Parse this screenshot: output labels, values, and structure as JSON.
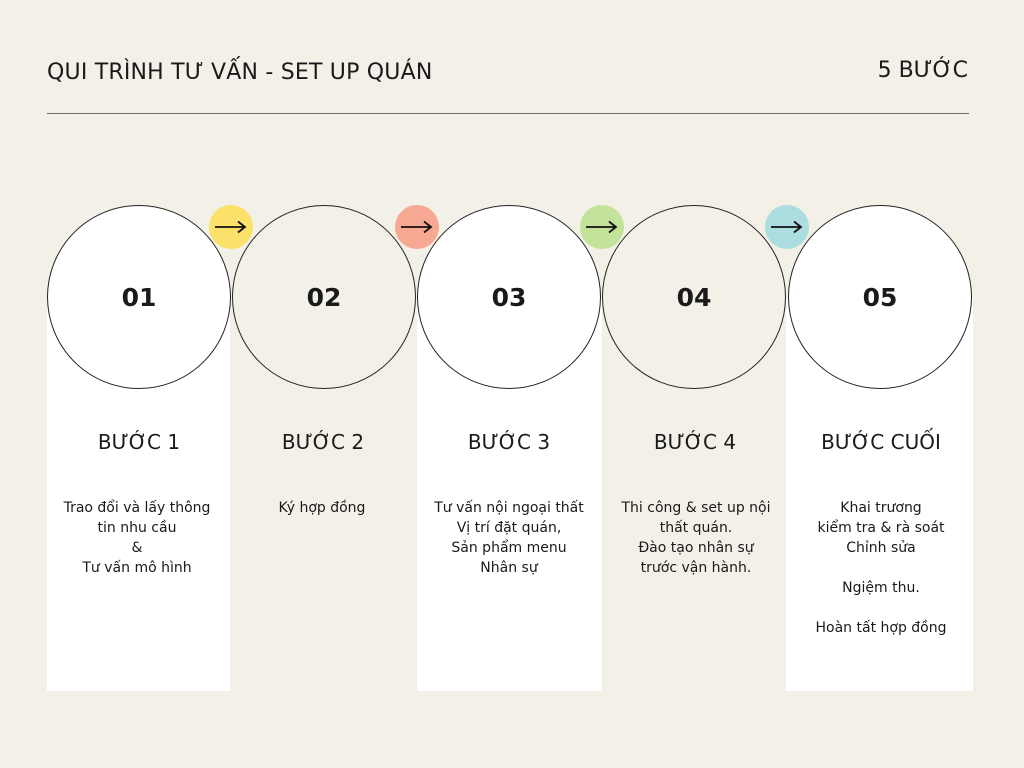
{
  "header": {
    "title": "QUI TRÌNH TƯ VẤN - SET UP QUÁN",
    "steps_count": "5 BƯỚC"
  },
  "steps": [
    {
      "number": "01",
      "label": "BƯỚC 1",
      "description": "Trao đổi và lấy thông\ntin nhu cầu\n&\nTư vấn mô hình"
    },
    {
      "number": "02",
      "label": "BƯỚC 2",
      "description": "Ký hợp đồng"
    },
    {
      "number": "03",
      "label": "BƯỚC 3",
      "description": "Tư vấn nội ngoại thất\nVị trí đặt quán,\nSản phẩm menu\nNhân sự"
    },
    {
      "number": "04",
      "label": "BƯỚC 4",
      "description": "Thi công & set up nội\nthất quán.\nĐào tạo nhân sự\ntrước vận hành."
    },
    {
      "number": "05",
      "label": "BƯỚC CUỐI",
      "description": "Khai trương\nkiểm tra & rà soát\nChỉnh sửa\n\nNgiệm thu.\n\nHoàn tất hợp đồng"
    }
  ],
  "arrows": [
    {
      "icon": "arrow-right-icon",
      "color": "#fbe06a"
    },
    {
      "icon": "arrow-right-icon",
      "color": "#f7a893"
    },
    {
      "icon": "arrow-right-icon",
      "color": "#c4e39a"
    },
    {
      "icon": "arrow-right-icon",
      "color": "#acdde0"
    }
  ],
  "colors": {
    "background": "#f3f0e8",
    "panel": "#ffffff",
    "text": "#1a1a1a"
  }
}
